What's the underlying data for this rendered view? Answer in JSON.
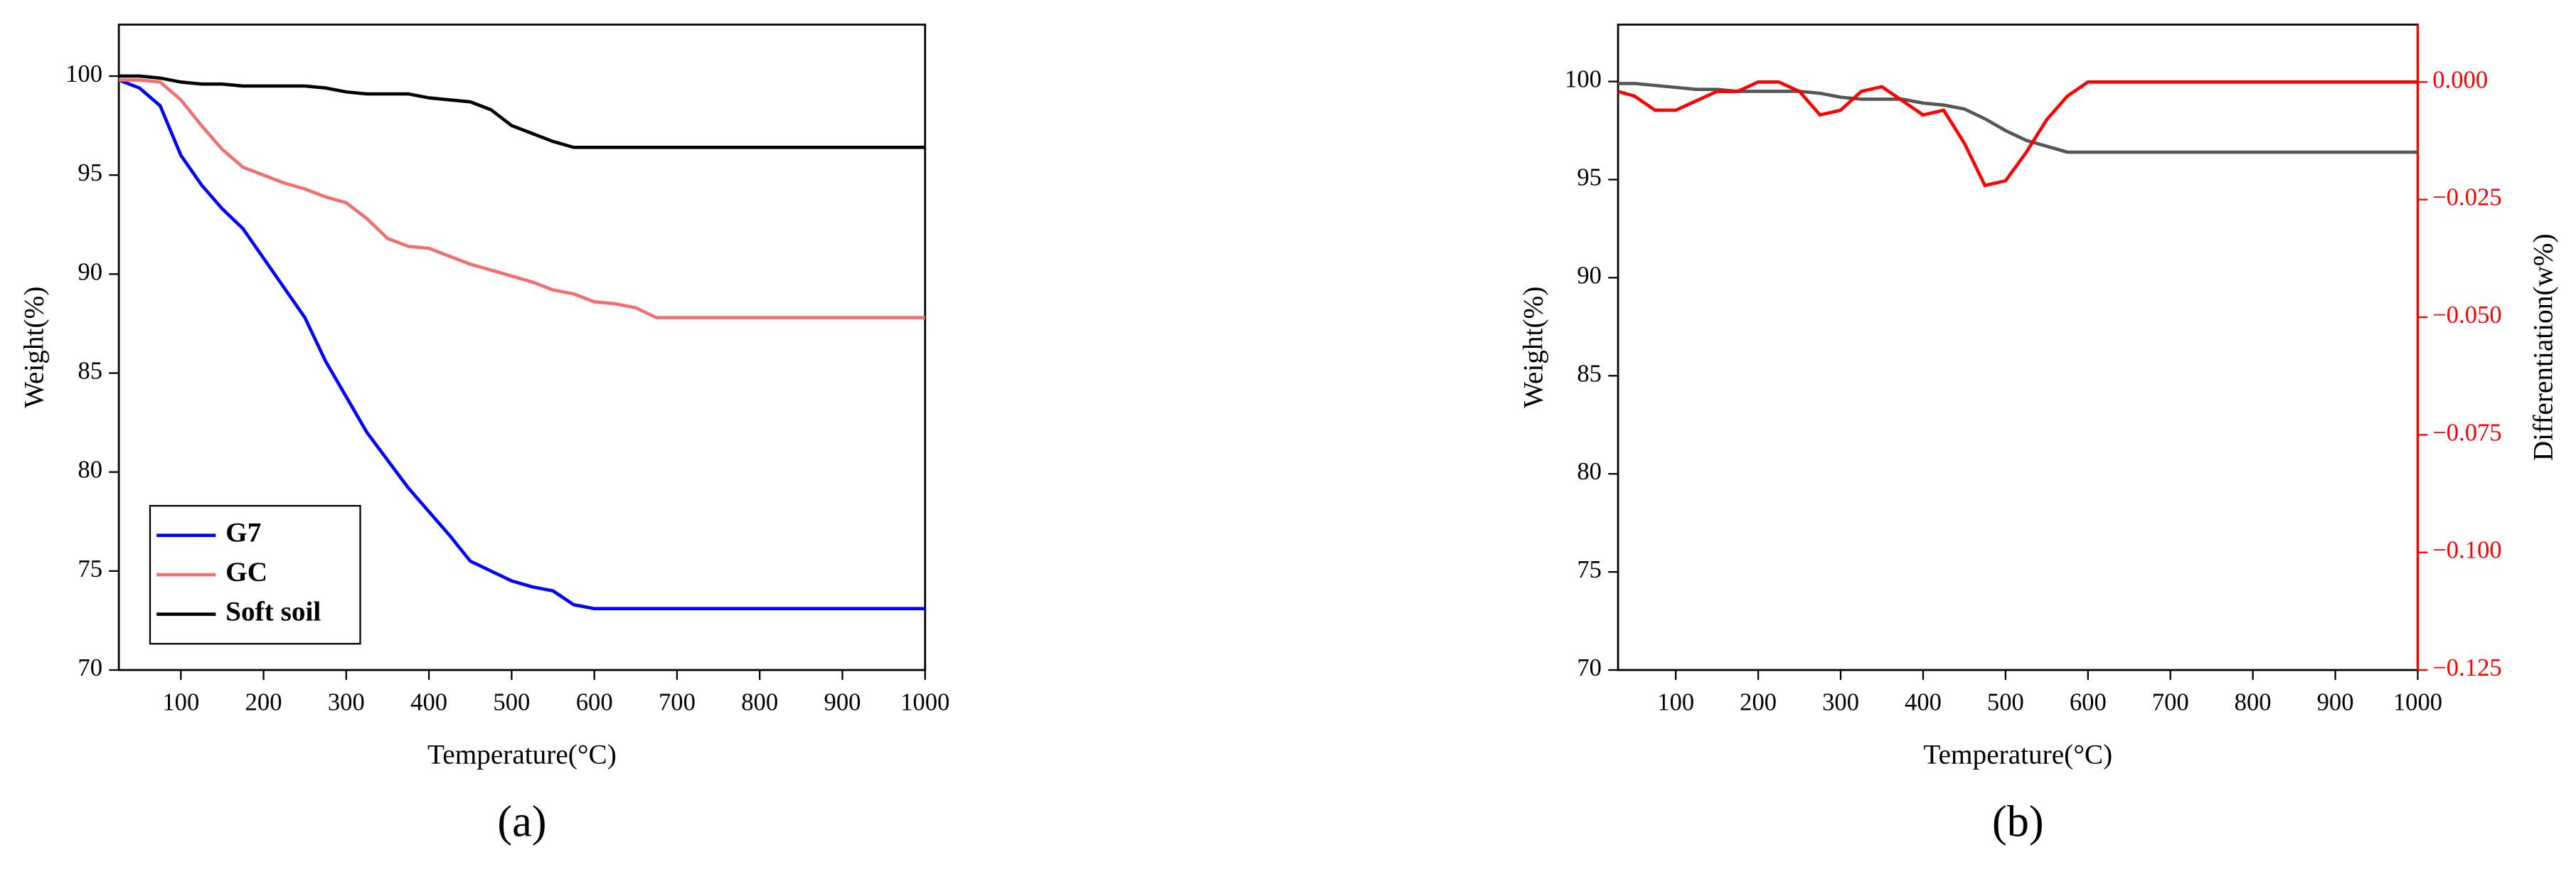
{
  "chart_data": [
    {
      "type": "line",
      "panel_label": "(a)",
      "x_label": "Temperature(°C)",
      "y_label": "Weight(%)",
      "x": [
        25,
        50,
        75,
        100,
        125,
        150,
        175,
        200,
        225,
        250,
        275,
        300,
        325,
        350,
        375,
        400,
        425,
        450,
        475,
        500,
        525,
        550,
        575,
        600,
        625,
        650,
        675,
        700,
        1000
      ],
      "series": [
        {
          "name": "G7",
          "color": "#0000ff",
          "values": [
            99.8,
            99.4,
            98.5,
            96,
            94.5,
            93.3,
            92.3,
            90.8,
            89.3,
            87.8,
            85.6,
            83.8,
            82.0,
            80.6,
            79.2,
            78.0,
            76.8,
            75.5,
            75.0,
            74.5,
            74.2,
            74.0,
            73.3,
            73.1,
            73.1,
            73.1,
            73.1,
            73.1,
            73.1
          ]
        },
        {
          "name": "GC",
          "color": "#f07070",
          "values": [
            99.8,
            99.8,
            99.7,
            98.8,
            97.5,
            96.3,
            95.4,
            95.0,
            94.6,
            94.3,
            93.9,
            93.6,
            92.8,
            91.8,
            91.4,
            91.3,
            90.9,
            90.5,
            90.2,
            89.9,
            89.6,
            89.2,
            89.0,
            88.6,
            88.5,
            88.3,
            87.8,
            87.8,
            87.8
          ]
        },
        {
          "name": "Soft soil",
          "color": "#000000",
          "values": [
            100,
            100,
            99.9,
            99.7,
            99.6,
            99.6,
            99.5,
            99.5,
            99.5,
            99.5,
            99.4,
            99.2,
            99.1,
            99.1,
            99.1,
            98.9,
            98.8,
            98.7,
            98.3,
            97.5,
            97.1,
            96.7,
            96.4,
            96.4,
            96.4,
            96.4,
            96.4,
            96.4,
            96.4
          ]
        }
      ],
      "xlim": [
        25,
        1000
      ],
      "xticks": [
        100,
        200,
        300,
        400,
        500,
        600,
        700,
        800,
        900,
        1000
      ],
      "ylim": [
        70,
        102.6
      ],
      "yticks": [
        70,
        75,
        80,
        85,
        90,
        95,
        100
      ],
      "legend": "lower left"
    },
    {
      "type": "line",
      "panel_label": "(b)",
      "x_label": "Temperature(°C)",
      "y_label": "Weight(%)",
      "y2_label": "Differentiation(w%)",
      "x": [
        30,
        50,
        75,
        100,
        125,
        150,
        175,
        200,
        225,
        250,
        275,
        300,
        325,
        350,
        375,
        400,
        425,
        450,
        475,
        500,
        525,
        550,
        575,
        600,
        1000
      ],
      "series": [
        {
          "color": "#555555",
          "values": [
            99.9,
            99.9,
            99.8,
            99.7,
            99.6,
            99.6,
            99.5,
            99.5,
            99.5,
            99.5,
            99.4,
            99.2,
            99.1,
            99.1,
            99.1,
            98.9,
            98.8,
            98.6,
            98.1,
            97.5,
            97.0,
            96.7,
            96.4,
            96.4,
            96.4
          ]
        },
        {
          "color": "#ff0000",
          "axis": "y2",
          "values": [
            -0.002,
            -0.003,
            -0.006,
            -0.006,
            -0.004,
            -0.002,
            -0.002,
            0.0,
            0.0,
            -0.002,
            -0.007,
            -0.006,
            -0.002,
            -0.001,
            -0.004,
            -0.007,
            -0.006,
            -0.013,
            -0.022,
            -0.021,
            -0.015,
            -0.008,
            -0.003,
            0.0,
            0.0
          ]
        }
      ],
      "xlim": [
        30,
        1000
      ],
      "xticks": [
        100,
        200,
        300,
        400,
        500,
        600,
        700,
        800,
        900,
        1000
      ],
      "ylim": [
        70,
        102.9
      ],
      "yticks": [
        70,
        75,
        80,
        85,
        90,
        95,
        100
      ],
      "y2lim": [
        -0.125,
        0.0122
      ],
      "y2ticks": [
        {
          "value": -0.125,
          "label": "−0.125"
        },
        {
          "value": -0.1,
          "label": "−0.100"
        },
        {
          "value": -0.075,
          "label": "−0.075"
        },
        {
          "value": -0.05,
          "label": "−0.050"
        },
        {
          "value": -0.025,
          "label": "−0.025"
        },
        {
          "value": 0,
          "label": "0.000"
        }
      ],
      "y2color": "#ff0000"
    }
  ]
}
